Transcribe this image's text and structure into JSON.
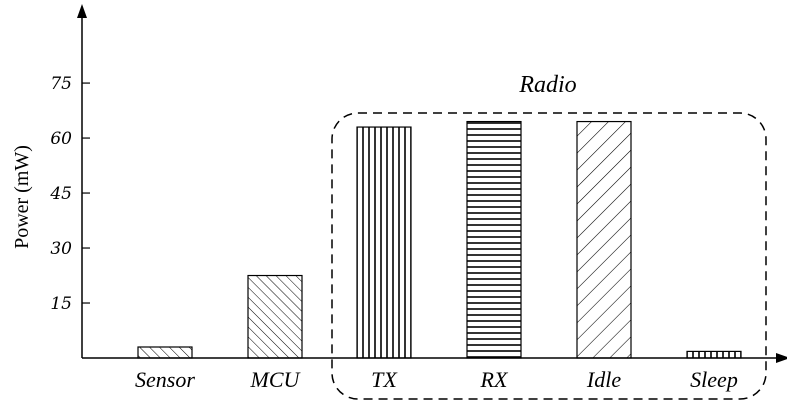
{
  "chart_data": {
    "type": "bar",
    "categories": [
      "Sensor",
      "MCU",
      "TX",
      "RX",
      "Idle",
      "Sleep"
    ],
    "values": [
      3,
      22.5,
      63,
      64.5,
      64.5,
      1.8
    ],
    "patterns": [
      "diag-down",
      "diag-down",
      "vertical",
      "horizontal",
      "diag-up",
      "vertical"
    ],
    "ylabel": "Power (mW)",
    "xlabel": "",
    "ylim": [
      0,
      95
    ],
    "yticks": [
      15,
      30,
      45,
      60,
      75
    ],
    "ytick_labels": [
      "15",
      "30",
      "45",
      "60",
      "75"
    ],
    "group": {
      "label": "Radio",
      "members": [
        "TX",
        "RX",
        "Idle",
        "Sleep"
      ]
    },
    "grid": false,
    "legend": "none",
    "colors": {
      "stroke": "#000000",
      "fill": "#ffffff"
    }
  }
}
